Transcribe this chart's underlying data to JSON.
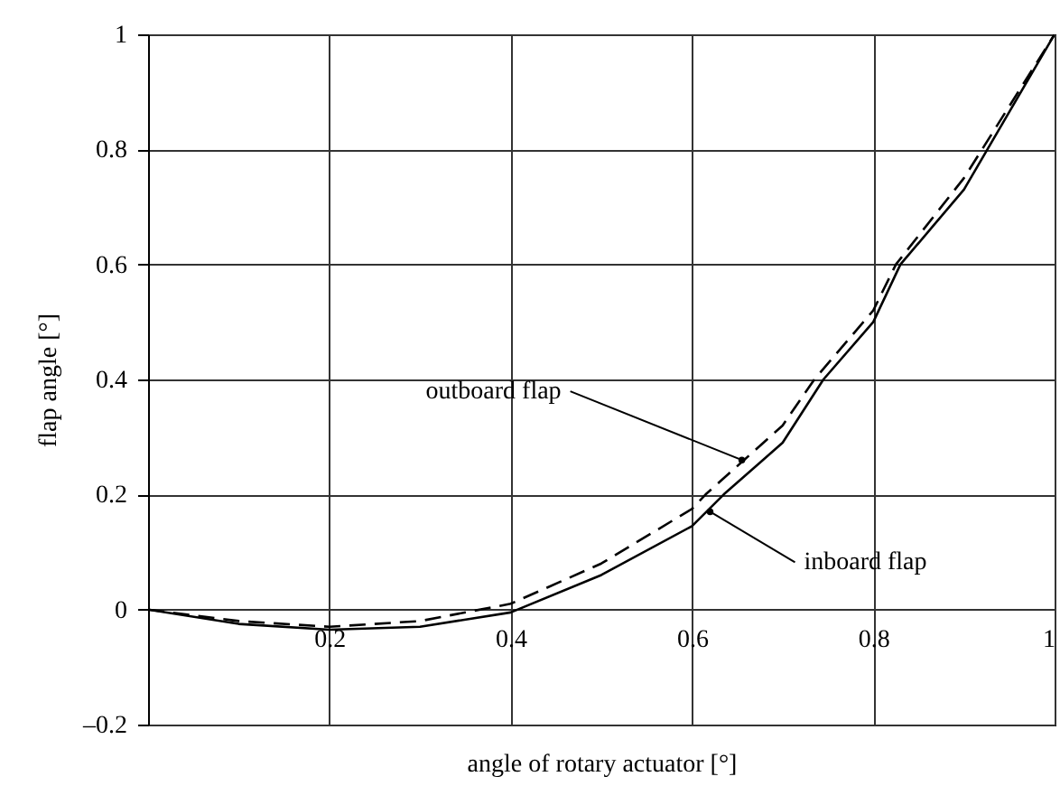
{
  "chart_data": {
    "type": "line",
    "xlabel": "angle of rotary actuator [°]",
    "ylabel": "flap angle [°]",
    "xlim": [
      0,
      1
    ],
    "ylim": [
      -0.2,
      1
    ],
    "xticks": [
      {
        "value": 0,
        "label": null
      },
      0.2,
      0.4,
      0.6,
      0.8,
      1
    ],
    "yticks": [
      {
        "value": -0.2,
        "label": "–0.2"
      },
      0,
      0.2,
      0.4,
      0.6,
      0.8,
      1
    ],
    "grid": true,
    "series": [
      {
        "color": "#000000",
        "line_style": "solid",
        "x": [
          0,
          0.1,
          0.2,
          0.3,
          0.4,
          0.5,
          0.6,
          0.635,
          0.7,
          0.745,
          0.8,
          0.83,
          0.9,
          1
        ],
        "values": [
          0,
          -0.025,
          -0.035,
          -0.03,
          -0.005,
          0.06,
          0.145,
          0.2,
          0.29,
          0.4,
          0.5,
          0.6,
          0.73,
          1
        ]
      },
      {
        "color": "#000000",
        "line_style": "dashed",
        "x": [
          0,
          0.1,
          0.2,
          0.3,
          0.4,
          0.5,
          0.6,
          0.615,
          0.7,
          0.735,
          0.8,
          0.825,
          0.9,
          1
        ],
        "values": [
          0,
          -0.02,
          -0.03,
          -0.02,
          0.01,
          0.08,
          0.175,
          0.2,
          0.32,
          0.4,
          0.52,
          0.6,
          0.75,
          1
        ]
      }
    ],
    "annotations": [
      {
        "text": "outboard flap",
        "x": 0.655,
        "y": 0.26
      },
      {
        "text": "inboard flap",
        "x": 0.62,
        "y": 0.17
      }
    ]
  }
}
